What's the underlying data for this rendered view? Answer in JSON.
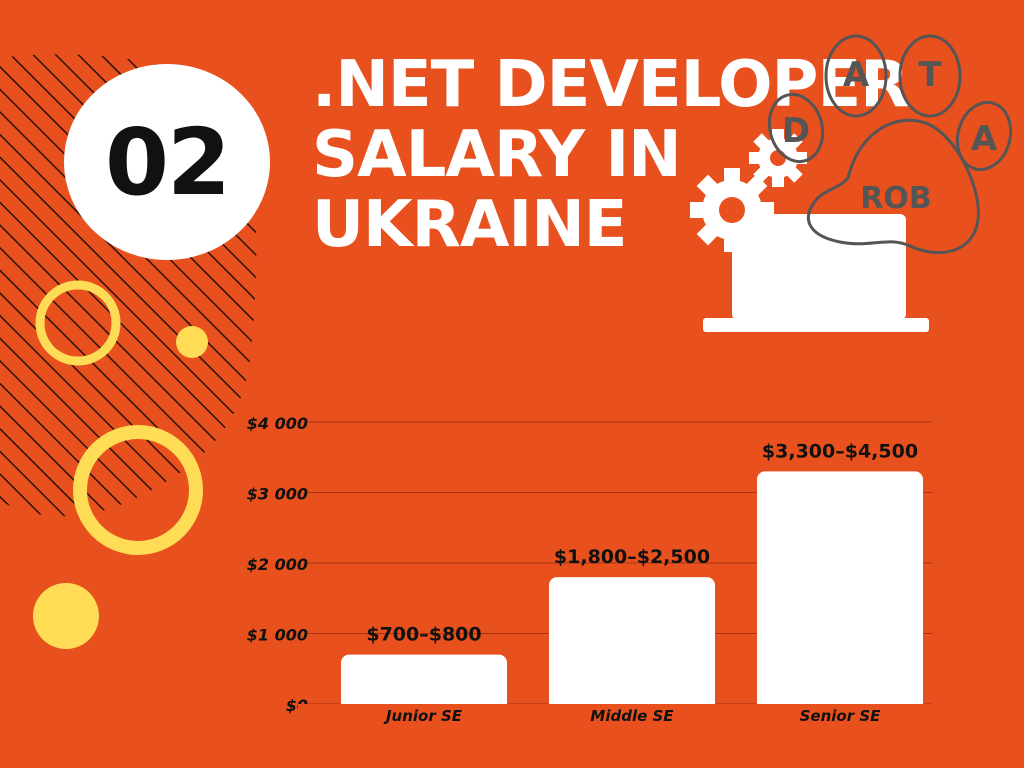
{
  "badge": {
    "number": "02"
  },
  "title": {
    "lines": [
      ".NET DEVELOPER",
      "SALARY IN",
      "UKRAINE"
    ]
  },
  "logo": {
    "letters": [
      "D",
      "A",
      "T",
      "A"
    ],
    "word": "ROB"
  },
  "icons": [
    "gear-icon",
    "laptop-icon"
  ],
  "colors": {
    "background": "#e8501e",
    "bars": "#ffffff",
    "accent": "#fedc56",
    "text": "#111111",
    "gridline": "#a83414"
  },
  "chart_data": {
    "type": "bar",
    "categories": [
      "Junior SE",
      "Middle SE",
      "Senior SE"
    ],
    "values": [
      700,
      1800,
      3300
    ],
    "ranges": [
      [
        700,
        800
      ],
      [
        1800,
        2500
      ],
      [
        3300,
        4500
      ]
    ],
    "data_labels": [
      "$700–$800",
      "$1,800–$2,500",
      "$3,300–$4,500"
    ],
    "y_ticks": [
      0,
      1000,
      2000,
      3000,
      4000
    ],
    "y_tick_labels": [
      "$0",
      "$1 000",
      "$2 000",
      "$3 000",
      "$4 000"
    ],
    "ylim": [
      0,
      4000
    ],
    "grid": true,
    "legend": "none"
  }
}
